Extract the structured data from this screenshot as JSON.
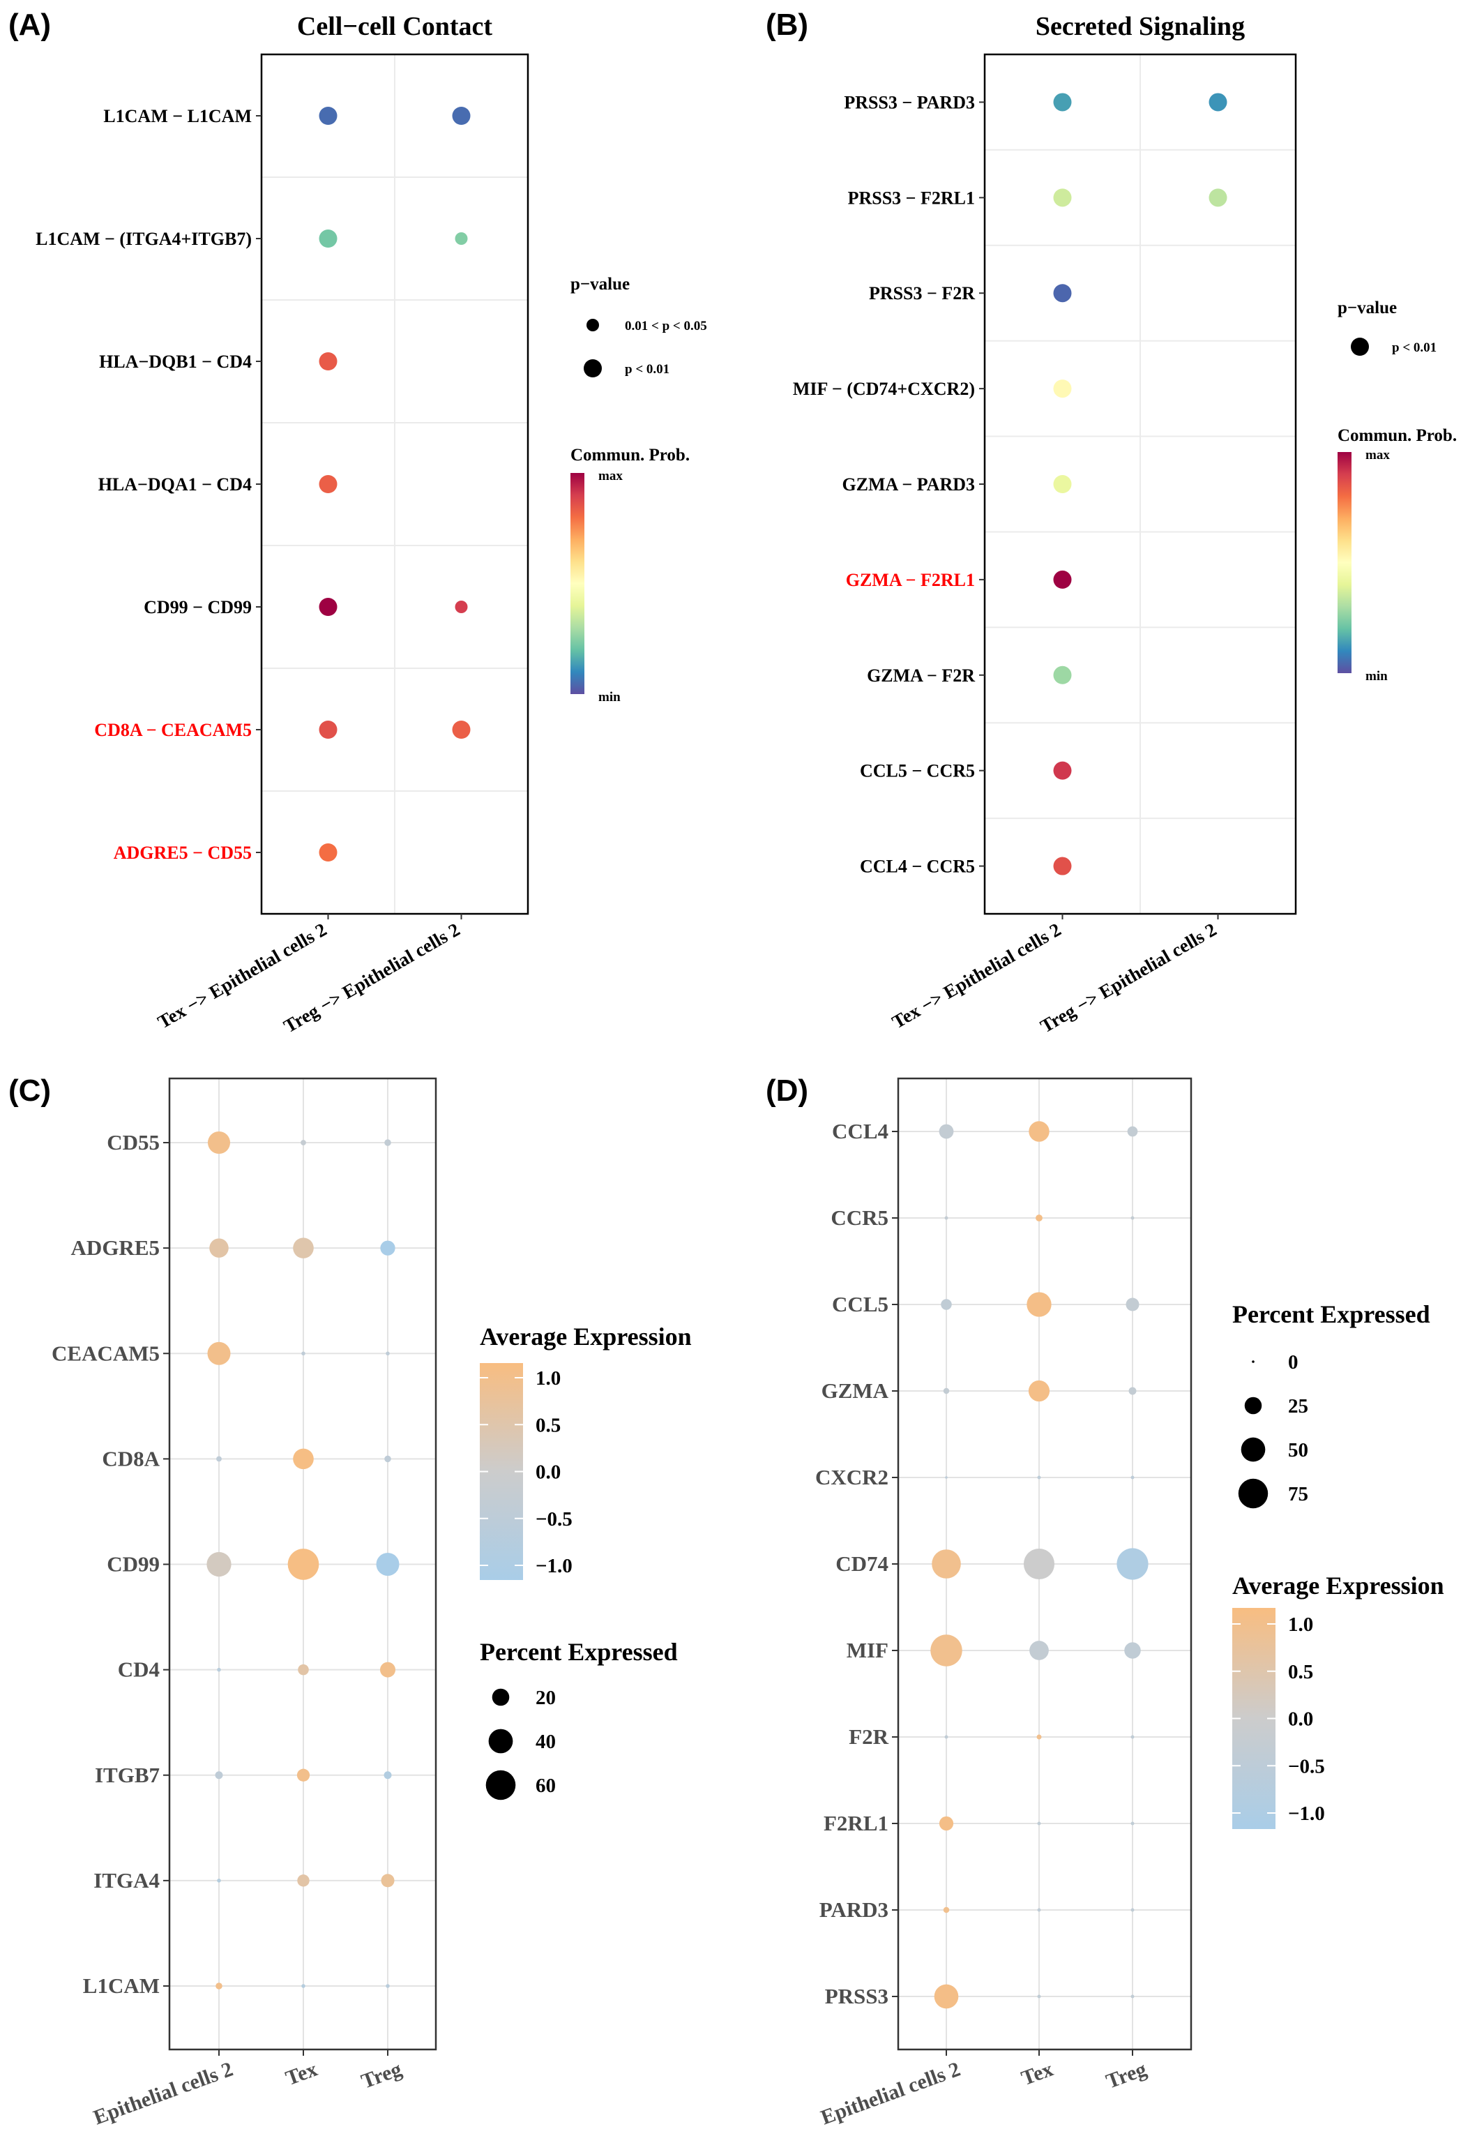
{
  "panels": [
    {
      "id": "A",
      "letter": "(A)",
      "title": "Cell−cell Contact",
      "chart_data": {
        "type": "scatter",
        "subtype": "bubble-communication",
        "title": "Cell−cell Contact",
        "categories_x": [
          "Tex −> Epithelial cells 2",
          "Treg −> Epithelial cells 2"
        ],
        "categories_y": [
          "L1CAM − L1CAM",
          "L1CAM − (ITGA4+ITGB7)",
          "HLA−DQB1 − CD4",
          "HLA−DQA1 − CD4",
          "CD99 − CD99",
          "CD8A − CEACAM5",
          "ADGRE5 − CD55"
        ],
        "highlight_y": [
          "CD8A − CEACAM5",
          "ADGRE5 − CD55"
        ],
        "points": [
          {
            "x": 0,
            "y": 0,
            "prob": 0.05,
            "p": "p < 0.01"
          },
          {
            "x": 1,
            "y": 0,
            "prob": 0.05,
            "p": "p < 0.01"
          },
          {
            "x": 0,
            "y": 1,
            "prob": 0.22,
            "p": "p < 0.01"
          },
          {
            "x": 1,
            "y": 1,
            "prob": 0.24,
            "p": "0.01 < p < 0.05"
          },
          {
            "x": 0,
            "y": 2,
            "prob": 0.84,
            "p": "p < 0.01"
          },
          {
            "x": 0,
            "y": 3,
            "prob": 0.83,
            "p": "p < 0.01"
          },
          {
            "x": 0,
            "y": 4,
            "prob": 1.0,
            "p": "p < 0.01"
          },
          {
            "x": 1,
            "y": 4,
            "prob": 0.9,
            "p": "0.01 < p < 0.05"
          },
          {
            "x": 0,
            "y": 5,
            "prob": 0.86,
            "p": "p < 0.01"
          },
          {
            "x": 1,
            "y": 5,
            "prob": 0.83,
            "p": "p < 0.01"
          },
          {
            "x": 0,
            "y": 6,
            "prob": 0.8,
            "p": "p < 0.01"
          }
        ],
        "legend_size_title": "p−value",
        "legend_size_labels": [
          "0.01 < p < 0.05",
          "p < 0.01"
        ],
        "legend_color_title": "Commun. Prob.",
        "legend_color_max": "max",
        "legend_color_min": "min",
        "colorscale": "Spectral"
      }
    },
    {
      "id": "B",
      "letter": "(B)",
      "title": "Secreted Signaling",
      "chart_data": {
        "type": "scatter",
        "subtype": "bubble-communication",
        "title": "Secreted Signaling",
        "categories_x": [
          "Tex −> Epithelial cells 2",
          "Treg −> Epithelial cells 2"
        ],
        "categories_y": [
          "PRSS3 − PARD3",
          "PRSS3 − F2RL1",
          "PRSS3 − F2R",
          "MIF − (CD74+CXCR2)",
          "GZMA − PARD3",
          "GZMA − F2RL1",
          "GZMA − F2R",
          "CCL5 − CCR5",
          "CCL4 − CCR5"
        ],
        "highlight_y": [
          "GZMA − F2RL1"
        ],
        "points": [
          {
            "x": 0,
            "y": 0,
            "prob": 0.14,
            "p": "p < 0.01"
          },
          {
            "x": 1,
            "y": 0,
            "prob": 0.12,
            "p": "p < 0.01"
          },
          {
            "x": 0,
            "y": 1,
            "prob": 0.36,
            "p": "p < 0.01"
          },
          {
            "x": 1,
            "y": 1,
            "prob": 0.33,
            "p": "p < 0.01"
          },
          {
            "x": 0,
            "y": 2,
            "prob": 0.04,
            "p": "p < 0.01"
          },
          {
            "x": 0,
            "y": 3,
            "prob": 0.52,
            "p": "p < 0.01"
          },
          {
            "x": 0,
            "y": 4,
            "prob": 0.42,
            "p": "p < 0.01"
          },
          {
            "x": 0,
            "y": 5,
            "prob": 1.0,
            "p": "p < 0.01"
          },
          {
            "x": 0,
            "y": 6,
            "prob": 0.28,
            "p": "p < 0.01"
          },
          {
            "x": 0,
            "y": 7,
            "prob": 0.91,
            "p": "p < 0.01"
          },
          {
            "x": 0,
            "y": 8,
            "prob": 0.86,
            "p": "p < 0.01"
          }
        ],
        "legend_size_title": "p−value",
        "legend_size_labels": [
          "p < 0.01"
        ],
        "legend_color_title": "Commun. Prob.",
        "legend_color_max": "max",
        "legend_color_min": "min",
        "colorscale": "Spectral"
      }
    },
    {
      "id": "C",
      "letter": "(C)",
      "chart_data": {
        "type": "scatter",
        "subtype": "dotplot-expression",
        "categories_x": [
          "Epithelial cells 2",
          "Tex",
          "Treg"
        ],
        "categories_y": [
          "CD55",
          "ADGRE5",
          "CEACAM5",
          "CD8A",
          "CD99",
          "CD4",
          "ITGB7",
          "ITGA4",
          "L1CAM"
        ],
        "points": [
          {
            "gene": "CD55",
            "x": 0,
            "pct": 34,
            "avg": 1.0
          },
          {
            "gene": "CD55",
            "x": 1,
            "pct": 2,
            "avg": -0.2
          },
          {
            "gene": "CD55",
            "x": 2,
            "pct": 3,
            "avg": -0.3
          },
          {
            "gene": "ADGRE5",
            "x": 0,
            "pct": 25,
            "avg": 0.6
          },
          {
            "gene": "ADGRE5",
            "x": 1,
            "pct": 29,
            "avg": 0.5
          },
          {
            "gene": "ADGRE5",
            "x": 2,
            "pct": 15,
            "avg": -1.1
          },
          {
            "gene": "CEACAM5",
            "x": 0,
            "pct": 36,
            "avg": 1.0
          },
          {
            "gene": "CEACAM5",
            "x": 1,
            "pct": 1,
            "avg": -0.4
          },
          {
            "gene": "CEACAM5",
            "x": 2,
            "pct": 1,
            "avg": -0.4
          },
          {
            "gene": "CD8A",
            "x": 0,
            "pct": 2,
            "avg": -0.4
          },
          {
            "gene": "CD8A",
            "x": 1,
            "pct": 29,
            "avg": 1.1
          },
          {
            "gene": "CD8A",
            "x": 2,
            "pct": 3,
            "avg": -0.4
          },
          {
            "gene": "CD99",
            "x": 0,
            "pct": 41,
            "avg": 0.2
          },
          {
            "gene": "CD99",
            "x": 1,
            "pct": 66,
            "avg": 1.1
          },
          {
            "gene": "CD99",
            "x": 2,
            "pct": 36,
            "avg": -1.1
          },
          {
            "gene": "CD4",
            "x": 0,
            "pct": 1,
            "avg": -0.6
          },
          {
            "gene": "CD4",
            "x": 1,
            "pct": 8,
            "avg": 0.6
          },
          {
            "gene": "CD4",
            "x": 2,
            "pct": 16,
            "avg": 1.0
          },
          {
            "gene": "ITGB7",
            "x": 0,
            "pct": 4,
            "avg": -0.4
          },
          {
            "gene": "ITGB7",
            "x": 1,
            "pct": 11,
            "avg": 1.0
          },
          {
            "gene": "ITGB7",
            "x": 2,
            "pct": 4,
            "avg": -0.8
          },
          {
            "gene": "ITGA4",
            "x": 0,
            "pct": 1,
            "avg": -0.7
          },
          {
            "gene": "ITGA4",
            "x": 1,
            "pct": 10,
            "avg": 0.6
          },
          {
            "gene": "ITGA4",
            "x": 2,
            "pct": 12,
            "avg": 0.8
          },
          {
            "gene": "L1CAM",
            "x": 0,
            "pct": 3,
            "avg": 1.0
          },
          {
            "gene": "L1CAM",
            "x": 1,
            "pct": 1,
            "avg": -0.7
          },
          {
            "gene": "L1CAM",
            "x": 2,
            "pct": 1,
            "avg": -0.6
          }
        ],
        "legend_color_title": "Average Expression",
        "legend_color_ticks": [
          "1.0",
          "0.5",
          "0.0",
          "−0.5",
          "−1.0"
        ],
        "legend_color_range": [
          -1.1,
          1.15
        ],
        "legend_size_title": "Percent Expressed",
        "legend_size_ticks": [
          20,
          40,
          60
        ],
        "colors": {
          "high": "#F8BD81",
          "mid": "#CCCCCC",
          "low": "#A9CDE8"
        }
      }
    },
    {
      "id": "D",
      "letter": "(D)",
      "chart_data": {
        "type": "scatter",
        "subtype": "dotplot-expression",
        "categories_x": [
          "Epithelial cells 2",
          "Tex",
          "Treg"
        ],
        "categories_y": [
          "CCL4",
          "CCR5",
          "CCL5",
          "GZMA",
          "CXCR2",
          "CD74",
          "MIF",
          "F2R",
          "F2RL1",
          "PARD3",
          "PRSS3"
        ],
        "points": [
          {
            "gene": "CCL4",
            "x": 0,
            "pct": 18,
            "avg": -0.3
          },
          {
            "gene": "CCL4",
            "x": 1,
            "pct": 36,
            "avg": 1.1
          },
          {
            "gene": "CCL4",
            "x": 2,
            "pct": 9,
            "avg": -0.3
          },
          {
            "gene": "CCR5",
            "x": 0,
            "pct": 1,
            "avg": -0.3
          },
          {
            "gene": "CCR5",
            "x": 1,
            "pct": 4,
            "avg": 1.1
          },
          {
            "gene": "CCR5",
            "x": 2,
            "pct": 1,
            "avg": -0.3
          },
          {
            "gene": "CCL5",
            "x": 0,
            "pct": 10,
            "avg": -0.4
          },
          {
            "gene": "CCL5",
            "x": 1,
            "pct": 52,
            "avg": 1.1
          },
          {
            "gene": "CCL5",
            "x": 2,
            "pct": 15,
            "avg": -0.3
          },
          {
            "gene": "GZMA",
            "x": 0,
            "pct": 3,
            "avg": -0.3
          },
          {
            "gene": "GZMA",
            "x": 1,
            "pct": 38,
            "avg": 1.1
          },
          {
            "gene": "GZMA",
            "x": 2,
            "pct": 5,
            "avg": -0.3
          },
          {
            "gene": "CXCR2",
            "x": 0,
            "pct": 0,
            "avg": -0.5
          },
          {
            "gene": "CXCR2",
            "x": 1,
            "pct": 1,
            "avg": -0.5
          },
          {
            "gene": "CXCR2",
            "x": 2,
            "pct": 1,
            "avg": -0.5
          },
          {
            "gene": "CD74",
            "x": 0,
            "pct": 72,
            "avg": 1.0
          },
          {
            "gene": "CD74",
            "x": 1,
            "pct": 81,
            "avg": 0.0
          },
          {
            "gene": "CD74",
            "x": 2,
            "pct": 85,
            "avg": -1.0
          },
          {
            "gene": "MIF",
            "x": 0,
            "pct": 86,
            "avg": 1.0
          },
          {
            "gene": "MIF",
            "x": 1,
            "pct": 32,
            "avg": -0.3
          },
          {
            "gene": "MIF",
            "x": 2,
            "pct": 23,
            "avg": -0.4
          },
          {
            "gene": "F2R",
            "x": 0,
            "pct": 1,
            "avg": -0.4
          },
          {
            "gene": "F2R",
            "x": 1,
            "pct": 2,
            "avg": 1.0
          },
          {
            "gene": "F2R",
            "x": 2,
            "pct": 1,
            "avg": -0.4
          },
          {
            "gene": "F2RL1",
            "x": 0,
            "pct": 17,
            "avg": 1.1
          },
          {
            "gene": "F2RL1",
            "x": 1,
            "pct": 1,
            "avg": -0.4
          },
          {
            "gene": "F2RL1",
            "x": 2,
            "pct": 1,
            "avg": -0.4
          },
          {
            "gene": "PARD3",
            "x": 0,
            "pct": 3,
            "avg": 1.0
          },
          {
            "gene": "PARD3",
            "x": 1,
            "pct": 1,
            "avg": -0.4
          },
          {
            "gene": "PARD3",
            "x": 2,
            "pct": 1,
            "avg": -0.4
          },
          {
            "gene": "PRSS3",
            "x": 0,
            "pct": 50,
            "avg": 1.1
          },
          {
            "gene": "PRSS3",
            "x": 1,
            "pct": 1,
            "avg": -0.4
          },
          {
            "gene": "PRSS3",
            "x": 2,
            "pct": 1,
            "avg": -0.4
          }
        ],
        "legend_size_title": "Percent Expressed",
        "legend_size_ticks": [
          0,
          25,
          50,
          75
        ],
        "legend_color_title": "Average Expression",
        "legend_color_ticks": [
          "1.0",
          "0.5",
          "0.0",
          "−0.5",
          "−1.0"
        ],
        "legend_color_range": [
          -1.2,
          1.2
        ],
        "colors": {
          "high": "#F8BD81",
          "mid": "#CCCCCC",
          "low": "#A9CDE8"
        }
      }
    }
  ]
}
